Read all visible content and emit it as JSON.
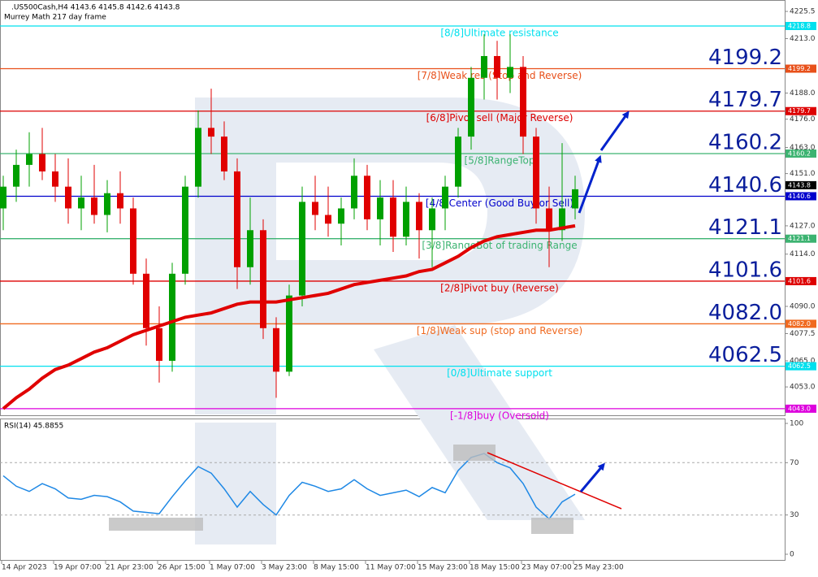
{
  "chart_data": [
    {
      "type": "candlestick",
      "title": ".US500Cash,H4  4143.6 4145.8 4142.6 4143.8",
      "subtitle": "Murrey Math 217 day frame",
      "categories": [
        "14 Apr 2023",
        null,
        null,
        null,
        "19 Apr 07:00",
        null,
        null,
        null,
        "21 Apr 23:00",
        null,
        null,
        null,
        "26 Apr 15:00",
        null,
        null,
        null,
        "1 May 07:00",
        null,
        null,
        null,
        "3 May 23:00",
        null,
        null,
        null,
        "8 May 15:00",
        null,
        null,
        null,
        "11 May 07:00",
        null,
        null,
        null,
        "15 May 23:00",
        null,
        null,
        null,
        "18 May 15:00",
        null,
        null,
        null,
        "23 May 07:00",
        null,
        null,
        null,
        "25 May 23:00"
      ],
      "open": [
        4135,
        4145,
        4155,
        4160,
        4152,
        4145,
        4135,
        4140,
        4132,
        4142,
        4135,
        4105,
        4080,
        4065,
        4105,
        4145,
        4172,
        4168,
        4152,
        4108,
        4125,
        4080,
        4060,
        4095,
        4138,
        4132,
        4128,
        4135,
        4150,
        4130,
        4140,
        4122,
        4138,
        4125,
        4135,
        4145,
        4168,
        4195,
        4205,
        4195,
        4200,
        4168,
        4135,
        4125,
        4135
      ],
      "high": [
        4150,
        4162,
        4170,
        4172,
        4160,
        4158,
        4150,
        4155,
        4148,
        4152,
        4140,
        4112,
        4090,
        4110,
        4150,
        4180,
        4190,
        4175,
        4158,
        4140,
        4130,
        4085,
        4100,
        4145,
        4150,
        4145,
        4140,
        4158,
        4155,
        4148,
        4148,
        4145,
        4142,
        4140,
        4150,
        4172,
        4200,
        4215,
        4212,
        4215,
        4205,
        4172,
        4145,
        4165,
        4150
      ],
      "low": [
        4125,
        4138,
        4145,
        4148,
        4138,
        4128,
        4125,
        4128,
        4124,
        4128,
        4100,
        4072,
        4055,
        4060,
        4100,
        4140,
        4160,
        4148,
        4098,
        4100,
        4075,
        4048,
        4058,
        4090,
        4125,
        4122,
        4118,
        4130,
        4125,
        4118,
        4115,
        4118,
        4112,
        4108,
        4125,
        4140,
        4162,
        4185,
        4185,
        4188,
        4160,
        4128,
        4108,
        4120,
        4130
      ],
      "close": [
        4145,
        4155,
        4160,
        4152,
        4145,
        4135,
        4140,
        4132,
        4142,
        4135,
        4105,
        4080,
        4065,
        4105,
        4145,
        4172,
        4168,
        4152,
        4108,
        4125,
        4080,
        4060,
        4095,
        4138,
        4132,
        4128,
        4135,
        4150,
        4130,
        4140,
        4122,
        4138,
        4125,
        4135,
        4145,
        4168,
        4195,
        4205,
        4195,
        4200,
        4168,
        4135,
        4125,
        4135,
        4143.8
      ],
      "colors": {
        "up": "#00a000",
        "down": "#e00000"
      },
      "ma": {
        "color": "#e00000",
        "values": [
          4043,
          4048,
          4052,
          4057,
          4061,
          4063,
          4066,
          4069,
          4071,
          4074,
          4077,
          4079,
          4081,
          4083,
          4085,
          4086,
          4087,
          4089,
          4091,
          4092,
          4092,
          4092,
          4093,
          4094,
          4095,
          4096,
          4098,
          4100,
          4101,
          4102,
          4103,
          4104,
          4106,
          4107,
          4110,
          4113,
          4117,
          4120,
          4122,
          4123,
          4124,
          4125,
          4125,
          4126,
          4127
        ]
      },
      "levels": [
        {
          "name": "[8/8]Ultimate resistance",
          "value": 4218.8,
          "label": "4218.8",
          "color": "#00e0ee",
          "highlight": false
        },
        {
          "name": "[7/8]Weak res (Stop and Reverse)",
          "value": 4199.2,
          "label": "4199.2",
          "color": "#e8501a",
          "highlight": true
        },
        {
          "name": "[6/8]Pivot sell (Major Reverse)",
          "value": 4179.7,
          "label": "4179.7",
          "color": "#dd0000",
          "highlight": true
        },
        {
          "name": "[5/8]RangeTop",
          "value": 4160.2,
          "label": "4160.2",
          "color": "#3cb371",
          "highlight": true
        },
        {
          "name": "[4/8]Center (Good Buy or Sell)",
          "value": 4140.6,
          "label": "4140.6",
          "color": "#0000cc",
          "highlight": true
        },
        {
          "name": "[3/8]RangeBot of trading Range",
          "value": 4121.1,
          "label": "4121.1",
          "color": "#3cb371",
          "highlight": true
        },
        {
          "name": "[2/8]Pivot buy (Reverse)",
          "value": 4101.6,
          "label": "4101.6",
          "color": "#dd0000",
          "highlight": true
        },
        {
          "name": "[1/8]Weak sup (stop and Reverse)",
          "value": 4082,
          "label": "4082.0",
          "color": "#f06a20",
          "highlight": true
        },
        {
          "name": "[0/8]Ultimate support",
          "value": 4062.5,
          "label": "4062.5",
          "color": "#00e0ee",
          "highlight": true
        },
        {
          "name": "[-1/8]buy (Oversold)",
          "value": 4043,
          "label": "4043.0",
          "color": "#dd00dd",
          "highlight": false
        }
      ],
      "ylim": [
        4039.6,
        4230
      ],
      "yticks": [
        {
          "value": 4225.5,
          "label": "4225.5"
        },
        {
          "value": 4213,
          "label": "4213.0"
        },
        {
          "value": 4188,
          "label": "4188.0"
        },
        {
          "value": 4176,
          "label": "4176.0"
        },
        {
          "value": 4163,
          "label": "4163.0"
        },
        {
          "value": 4151,
          "label": "4151.0"
        },
        {
          "value": 4127,
          "label": "4127.0"
        },
        {
          "value": 4114,
          "label": "4114.0"
        },
        {
          "value": 4090,
          "label": "4090.0"
        },
        {
          "value": 4077.5,
          "label": "4077.5"
        },
        {
          "value": 4065,
          "label": "4065.0"
        },
        {
          "value": 4053,
          "label": "4053.0"
        }
      ]
    },
    {
      "type": "line",
      "title": "RSI(14) 45.8855",
      "color": "#1e88e5",
      "values": [
        60,
        52,
        48,
        54,
        50,
        43,
        42,
        45,
        44,
        40,
        33,
        32,
        31,
        44,
        56,
        67,
        62,
        50,
        36,
        48,
        38,
        30,
        45,
        55,
        52,
        48,
        50,
        57,
        50,
        45,
        47,
        49,
        44,
        51,
        47,
        64,
        74,
        77,
        70,
        66,
        54,
        36,
        27,
        40,
        45.8855
      ],
      "ylim": [
        0,
        100
      ],
      "yticks": [
        100,
        70,
        30,
        0
      ],
      "levels": [
        70,
        30
      ]
    }
  ]
}
